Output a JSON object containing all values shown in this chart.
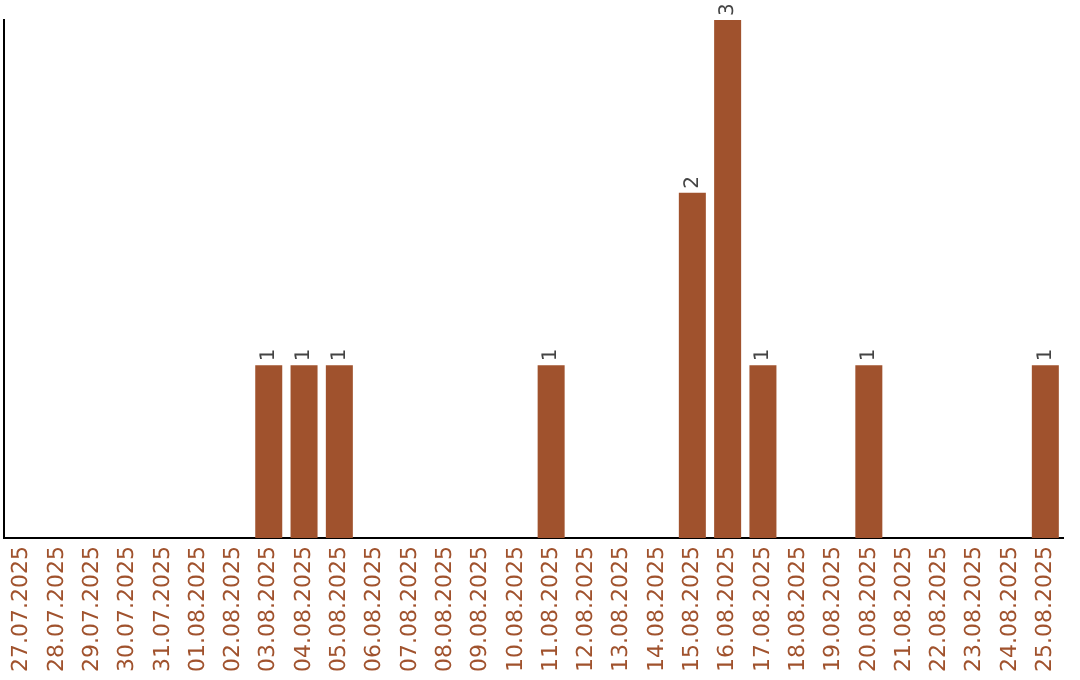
{
  "chart_data": {
    "type": "bar",
    "categories": [
      "27.07.2025",
      "28.07.2025",
      "29.07.2025",
      "30.07.2025",
      "31.07.2025",
      "01.08.2025",
      "02.08.2025",
      "03.08.2025",
      "04.08.2025",
      "05.08.2025",
      "06.08.2025",
      "07.08.2025",
      "08.08.2025",
      "09.08.2025",
      "10.08.2025",
      "11.08.2025",
      "12.08.2025",
      "13.08.2025",
      "14.08.2025",
      "15.08.2025",
      "16.08.2025",
      "17.08.2025",
      "18.08.2025",
      "19.08.2025",
      "20.08.2025",
      "21.08.2025",
      "22.08.2025",
      "23.08.2025",
      "24.08.2025",
      "25.08.2025"
    ],
    "values": [
      0,
      0,
      0,
      0,
      0,
      0,
      0,
      1,
      1,
      1,
      0,
      0,
      0,
      0,
      0,
      1,
      0,
      0,
      0,
      2,
      3,
      1,
      0,
      0,
      1,
      0,
      0,
      0,
      0,
      1
    ],
    "value_labels": [
      null,
      null,
      null,
      null,
      null,
      null,
      null,
      "1",
      "1",
      "1",
      null,
      null,
      null,
      null,
      null,
      "1",
      null,
      null,
      null,
      "2",
      "3",
      "1",
      null,
      null,
      "1",
      null,
      null,
      null,
      null,
      "1"
    ],
    "color": "#a0522d",
    "grid": false,
    "legend": false,
    "tick_labels": "x"
  }
}
